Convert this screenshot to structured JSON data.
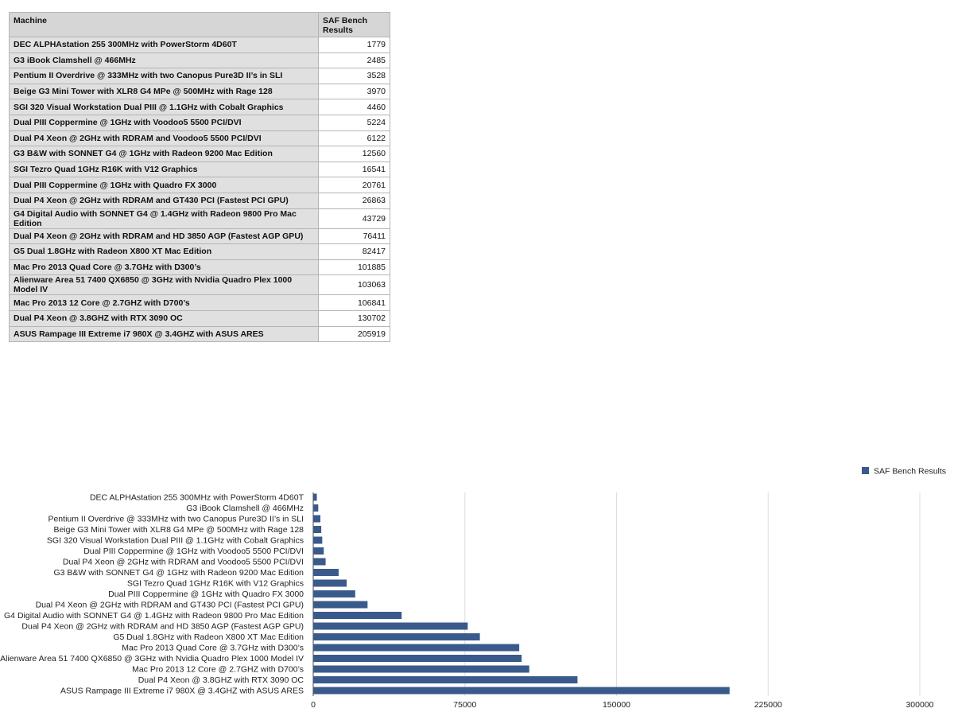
{
  "table": {
    "headers": [
      "Machine",
      "SAF Bench Results"
    ],
    "rows": [
      {
        "machine": "DEC ALPHAstation 255 300MHz with PowerStorm 4D60T",
        "value": "1779"
      },
      {
        "machine": "G3 iBook Clamshell @ 466MHz",
        "value": "2485"
      },
      {
        "machine": "Pentium II Overdrive @ 333MHz with two Canopus Pure3D II’s in SLI",
        "value": "3528"
      },
      {
        "machine": "Beige G3 Mini Tower with XLR8 G4 MPe @ 500MHz with Rage 128",
        "value": "3970"
      },
      {
        "machine": "SGI 320 Visual Workstation Dual PIII @ 1.1GHz with Cobalt Graphics",
        "value": "4460"
      },
      {
        "machine": "Dual PIII Coppermine @ 1GHz with Voodoo5 5500 PCI/DVI",
        "value": "5224"
      },
      {
        "machine": "Dual P4 Xeon @ 2GHz with RDRAM and Voodoo5 5500 PCI/DVI",
        "value": "6122"
      },
      {
        "machine": "G3 B&W with SONNET G4 @ 1GHz with Radeon 9200 Mac Edition",
        "value": "12560"
      },
      {
        "machine": "SGI Tezro Quad 1GHz R16K with V12 Graphics",
        "value": "16541"
      },
      {
        "machine": "Dual PIII Coppermine @ 1GHz with Quadro FX 3000",
        "value": "20761"
      },
      {
        "machine": "Dual P4 Xeon @ 2GHz with RDRAM and GT430 PCI (Fastest PCI GPU)",
        "value": "26863"
      },
      {
        "machine": "G4 Digital Audio with SONNET G4 @ 1.4GHz with Radeon 9800 Pro Mac Edition",
        "value": "43729"
      },
      {
        "machine": "Dual P4 Xeon @ 2GHz with RDRAM and HD 3850 AGP (Fastest AGP GPU)",
        "value": "76411"
      },
      {
        "machine": "G5 Dual 1.8GHz with Radeon X800 XT Mac Edition",
        "value": "82417"
      },
      {
        "machine": "Mac Pro 2013 Quad Core @ 3.7GHz with D300’s",
        "value": "101885"
      },
      {
        "machine": "Alienware Area 51 7400 QX6850 @ 3GHz with Nvidia Quadro Plex 1000 Model IV",
        "value": "103063"
      },
      {
        "machine": "Mac Pro 2013 12 Core @ 2.7GHZ with D700’s",
        "value": "106841"
      },
      {
        "machine": "Dual P4 Xeon @ 3.8GHZ with RTX 3090 OC",
        "value": "130702"
      },
      {
        "machine": "ASUS Rampage III Extreme i7 980X @ 3.4GHZ with ASUS ARES",
        "value": "205919"
      }
    ]
  },
  "chart_data": {
    "type": "bar",
    "orientation": "horizontal",
    "title": "",
    "xlabel": "",
    "ylabel": "",
    "legend": {
      "position": "top-right"
    },
    "xlim": [
      0,
      300000
    ],
    "xticks": [
      "0",
      "75000",
      "150000",
      "225000",
      "300000"
    ],
    "xtick_values": [
      0,
      75000,
      150000,
      225000,
      300000
    ],
    "grid": true,
    "categories": [
      "DEC ALPHAstation 255 300MHz with PowerStorm 4D60T",
      "G3 iBook Clamshell @ 466MHz",
      "Pentium II Overdrive @ 333MHz with two Canopus Pure3D II’s in SLI",
      "Beige G3 Mini Tower with XLR8 G4 MPe @ 500MHz with Rage 128",
      "SGI 320 Visual Workstation Dual PIII @ 1.1GHz with Cobalt Graphics",
      "Dual PIII Coppermine @ 1GHz with Voodoo5 5500 PCI/DVI",
      "Dual P4 Xeon @ 2GHz with RDRAM and Voodoo5 5500 PCI/DVI",
      "G3 B&W with SONNET G4 @ 1GHz with Radeon 9200 Mac Edition",
      "SGI Tezro Quad 1GHz R16K with V12 Graphics",
      "Dual PIII Coppermine @ 1GHz with Quadro FX 3000",
      "Dual P4 Xeon @ 2GHz with RDRAM and GT430 PCI (Fastest PCI GPU)",
      "G4 Digital Audio with SONNET G4 @ 1.4GHz with Radeon 9800 Pro Mac Edition",
      "Dual P4 Xeon @ 2GHz with RDRAM and HD 3850 AGP (Fastest AGP GPU)",
      "G5 Dual 1.8GHz with Radeon X800 XT Mac Edition",
      "Mac Pro 2013 Quad Core @ 3.7GHz with D300’s",
      "Alienware Area 51 7400 QX6850 @ 3GHz with Nvidia Quadro Plex 1000 Model IV",
      "Mac Pro 2013 12 Core @ 2.7GHZ with D700’s",
      "Dual P4 Xeon @ 3.8GHZ with RTX 3090 OC",
      "ASUS Rampage III Extreme i7 980X @ 3.4GHZ with ASUS ARES"
    ],
    "series": [
      {
        "name": "SAF Bench Results",
        "color": "#3a5a8c",
        "values": [
          1779,
          2485,
          3528,
          3970,
          4460,
          5224,
          6122,
          12560,
          16541,
          20761,
          26863,
          43729,
          76411,
          82417,
          101885,
          103063,
          106841,
          130702,
          205919
        ]
      }
    ]
  }
}
